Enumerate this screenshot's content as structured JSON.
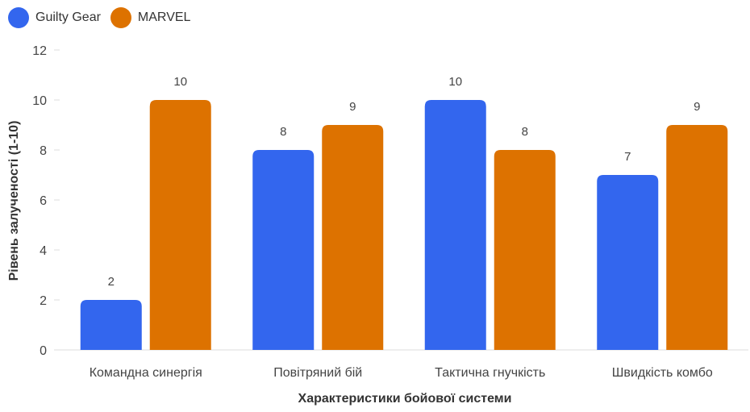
{
  "chart_data": {
    "type": "bar",
    "categories": [
      "Командна синергія",
      "Повітряний бій",
      "Тактична гнучкість",
      "Швидкість комбо"
    ],
    "series": [
      {
        "name": "Guilty Gear",
        "color": "#3366ee",
        "values": [
          2,
          8,
          10,
          7
        ]
      },
      {
        "name": "MARVEL",
        "color": "#dd7200",
        "values": [
          10,
          9,
          8,
          9
        ]
      }
    ],
    "xlabel": "Характеристики бойової системи",
    "ylabel": "Рівень залученості (1-10)",
    "ylim": [
      0,
      12
    ],
    "yticks": [
      0,
      2,
      4,
      6,
      8,
      10,
      12
    ],
    "data_labels": true,
    "grid": false,
    "legend_position": "top-left"
  }
}
